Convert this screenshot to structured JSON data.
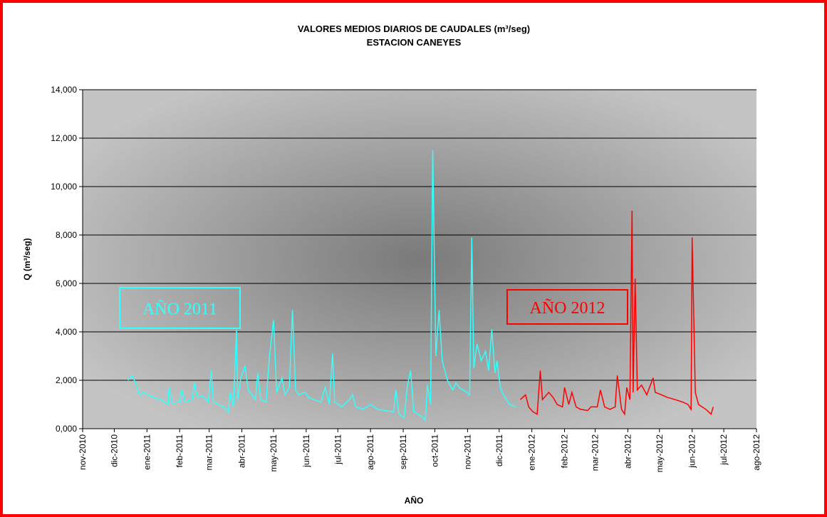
{
  "chart_data": {
    "type": "line",
    "title": "VALORES MEDIOS  DIARIOS DE CAUDALES (m³/seg)",
    "subtitle": "ESTACION CANEYES",
    "xlabel": "AÑO",
    "ylabel": "Q (m³/seg)",
    "xlim": [
      "2010-11-01",
      "2012-08-01"
    ],
    "xticks": [
      {
        "value": "2010-11-01",
        "label": "nov-2010"
      },
      {
        "value": "2010-12-01",
        "label": "dic-2010"
      },
      {
        "value": "2011-01-01",
        "label": "ene-2011"
      },
      {
        "value": "2011-02-01",
        "label": "feb-2011"
      },
      {
        "value": "2011-03-01",
        "label": "mar-2011"
      },
      {
        "value": "2011-04-01",
        "label": "abr-2011"
      },
      {
        "value": "2011-05-01",
        "label": "may-2011"
      },
      {
        "value": "2011-06-01",
        "label": "jun-2011"
      },
      {
        "value": "2011-07-01",
        "label": "jul-2011"
      },
      {
        "value": "2011-08-01",
        "label": "ago-2011"
      },
      {
        "value": "2011-09-01",
        "label": "sep-2011"
      },
      {
        "value": "2011-10-01",
        "label": "oct-2011"
      },
      {
        "value": "2011-11-01",
        "label": "nov-2011"
      },
      {
        "value": "2011-12-01",
        "label": "dic-2011"
      },
      {
        "value": "2012-01-01",
        "label": "ene-2012"
      },
      {
        "value": "2012-02-01",
        "label": "feb-2012"
      },
      {
        "value": "2012-03-01",
        "label": "mar-2012"
      },
      {
        "value": "2012-04-01",
        "label": "abr-2012"
      },
      {
        "value": "2012-05-01",
        "label": "may-2012"
      },
      {
        "value": "2012-06-01",
        "label": "jun-2012"
      },
      {
        "value": "2012-07-01",
        "label": "jul-2012"
      },
      {
        "value": "2012-08-01",
        "label": "ago-2012"
      }
    ],
    "ylim": [
      0,
      14000
    ],
    "yticks": [
      {
        "value": 0,
        "label": "0,000"
      },
      {
        "value": 2000,
        "label": "2,000"
      },
      {
        "value": 4000,
        "label": "4,000"
      },
      {
        "value": 6000,
        "label": "6,000"
      },
      {
        "value": 8000,
        "label": "8,000"
      },
      {
        "value": 10000,
        "label": "10,000"
      },
      {
        "value": 12000,
        "label": "12,000"
      },
      {
        "value": 14000,
        "label": "14,000"
      }
    ],
    "grid": true,
    "annotations": [
      {
        "text": "AÑO  2011",
        "color": "#33ffff"
      },
      {
        "text": "AÑO 2012",
        "color": "#ff0000"
      }
    ],
    "series": [
      {
        "color": "#33ffff",
        "x": [
          "2010-12-14",
          "2010-12-18",
          "2010-12-21",
          "2010-12-25",
          "2010-12-28",
          "2011-01-04",
          "2011-01-14",
          "2011-01-21",
          "2011-01-22",
          "2011-01-25",
          "2011-02-01",
          "2011-02-03",
          "2011-02-06",
          "2011-02-13",
          "2011-02-15",
          "2011-02-18",
          "2011-02-23",
          "2011-02-28",
          "2011-03-03",
          "2011-03-05",
          "2011-03-15",
          "2011-03-19",
          "2011-03-21",
          "2011-03-24",
          "2011-03-27",
          "2011-03-28",
          "2011-03-31",
          "2011-04-04",
          "2011-04-07",
          "2011-04-14",
          "2011-04-16",
          "2011-04-19",
          "2011-04-24",
          "2011-04-27",
          "2011-05-01",
          "2011-05-04",
          "2011-05-09",
          "2011-05-12",
          "2011-05-16",
          "2011-05-19",
          "2011-05-22",
          "2011-05-25",
          "2011-05-31",
          "2011-06-03",
          "2011-06-08",
          "2011-06-15",
          "2011-06-19",
          "2011-06-23",
          "2011-06-26",
          "2011-06-28",
          "2011-07-05",
          "2011-07-12",
          "2011-07-15",
          "2011-07-18",
          "2011-07-25",
          "2011-08-01",
          "2011-08-08",
          "2011-08-14",
          "2011-08-23",
          "2011-08-25",
          "2011-08-28",
          "2011-09-02",
          "2011-09-05",
          "2011-09-08",
          "2011-09-11",
          "2011-09-19",
          "2011-09-22",
          "2011-09-24",
          "2011-09-27",
          "2011-09-29",
          "2011-10-02",
          "2011-10-05",
          "2011-10-08",
          "2011-10-13",
          "2011-10-18",
          "2011-10-21",
          "2011-10-24",
          "2011-10-28",
          "2011-10-31",
          "2011-11-03",
          "2011-11-05",
          "2011-11-07",
          "2011-11-10",
          "2011-11-14",
          "2011-11-18",
          "2011-11-21",
          "2011-11-24",
          "2011-11-27",
          "2011-11-29",
          "2011-12-02",
          "2011-12-05",
          "2011-12-11",
          "2011-12-17"
        ],
        "values": [
          2000,
          2200,
          1900,
          1400,
          1500,
          1350,
          1200,
          1000,
          1700,
          1050,
          1100,
          1600,
          1100,
          1200,
          1900,
          1300,
          1350,
          1100,
          2400,
          1100,
          900,
          700,
          1500,
          900,
          4100,
          1200,
          2100,
          2600,
          1600,
          1200,
          2300,
          1200,
          1100,
          2900,
          4500,
          1500,
          2100,
          1400,
          1700,
          4900,
          1600,
          1400,
          1500,
          1300,
          1200,
          1100,
          1700,
          1000,
          3100,
          1100,
          900,
          1200,
          1400,
          900,
          800,
          1000,
          800,
          750,
          700,
          1600,
          600,
          450,
          1800,
          2400,
          700,
          500,
          350,
          1800,
          1000,
          11500,
          3000,
          4900,
          2800,
          2000,
          1600,
          1900,
          1700,
          1600,
          1500,
          1400,
          7900,
          2500,
          3500,
          2800,
          3200,
          2400,
          4100,
          2300,
          2800,
          1700,
          1400,
          1000,
          900
        ]
      },
      {
        "color": "#ff0000",
        "x": [
          "2011-12-21",
          "2011-12-26",
          "2011-12-29",
          "2012-01-02",
          "2012-01-06",
          "2012-01-09",
          "2012-01-11",
          "2012-01-17",
          "2012-01-21",
          "2012-01-25",
          "2012-01-30",
          "2012-02-01",
          "2012-02-05",
          "2012-02-08",
          "2012-02-12",
          "2012-02-16",
          "2012-02-23",
          "2012-02-26",
          "2012-03-03",
          "2012-03-06",
          "2012-03-10",
          "2012-03-15",
          "2012-03-20",
          "2012-03-22",
          "2012-03-26",
          "2012-03-29",
          "2012-03-31",
          "2012-04-03",
          "2012-04-05",
          "2012-04-06",
          "2012-04-08",
          "2012-04-10",
          "2012-04-14",
          "2012-04-19",
          "2012-04-25",
          "2012-04-27",
          "2012-05-03",
          "2012-05-08",
          "2012-05-16",
          "2012-05-23",
          "2012-05-28",
          "2012-05-31",
          "2012-06-01",
          "2012-06-04",
          "2012-06-07",
          "2012-06-14",
          "2012-06-19",
          "2012-06-21"
        ],
        "values": [
          1200,
          1400,
          900,
          700,
          600,
          2400,
          1200,
          1500,
          1300,
          1000,
          900,
          1700,
          1000,
          1500,
          900,
          800,
          750,
          900,
          900,
          1600,
          900,
          800,
          900,
          2200,
          800,
          600,
          1700,
          1200,
          9000,
          1500,
          6200,
          1600,
          1800,
          1400,
          2100,
          1500,
          1400,
          1300,
          1200,
          1100,
          1000,
          800,
          7900,
          1500,
          1000,
          800,
          600,
          900
        ]
      }
    ]
  }
}
